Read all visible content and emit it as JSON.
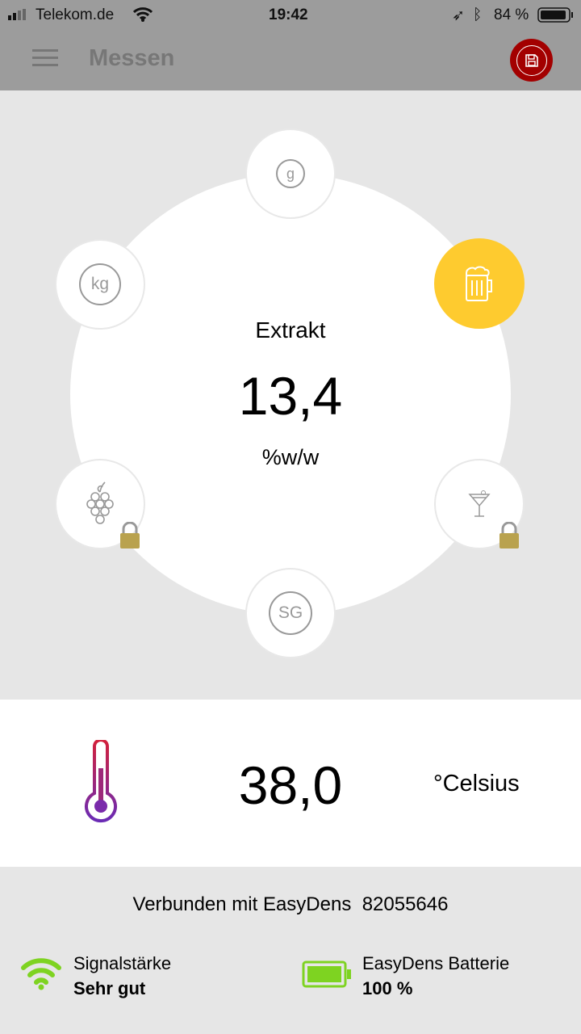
{
  "status_bar": {
    "carrier": "Telekom.de",
    "time": "19:42",
    "battery": "84 %"
  },
  "header": {
    "title": "Messen",
    "menu_icon": "hamburger-icon",
    "save_icon": "floppy-disk-icon",
    "save_color": "#a30000"
  },
  "dial": {
    "label": "Extrakt",
    "value": "13,4",
    "unit": "%w/w",
    "modes": [
      {
        "name": "g",
        "icon": "g-icon",
        "locked": false,
        "active": false
      },
      {
        "name": "beer",
        "icon": "beer-mug-icon",
        "locked": false,
        "active": true
      },
      {
        "name": "cocktail",
        "icon": "cocktail-icon",
        "locked": true,
        "active": false
      },
      {
        "name": "SG",
        "icon": "sg-icon",
        "locked": false,
        "active": false
      },
      {
        "name": "grapes",
        "icon": "grapes-icon",
        "locked": true,
        "active": false
      },
      {
        "name": "kg",
        "icon": "kg-icon",
        "locked": false,
        "active": false
      }
    ],
    "active_color": "#fecb2f"
  },
  "temperature": {
    "value": "38,0",
    "unit": "°Celsius"
  },
  "footer": {
    "connected_label": "Verbunden mit EasyDens",
    "device_id": "82055646",
    "signal_label": "Signalstärke",
    "signal_value": "Sehr gut",
    "battery_label": "EasyDens Batterie",
    "battery_value": "100 %",
    "status_color": "#7ed321"
  }
}
